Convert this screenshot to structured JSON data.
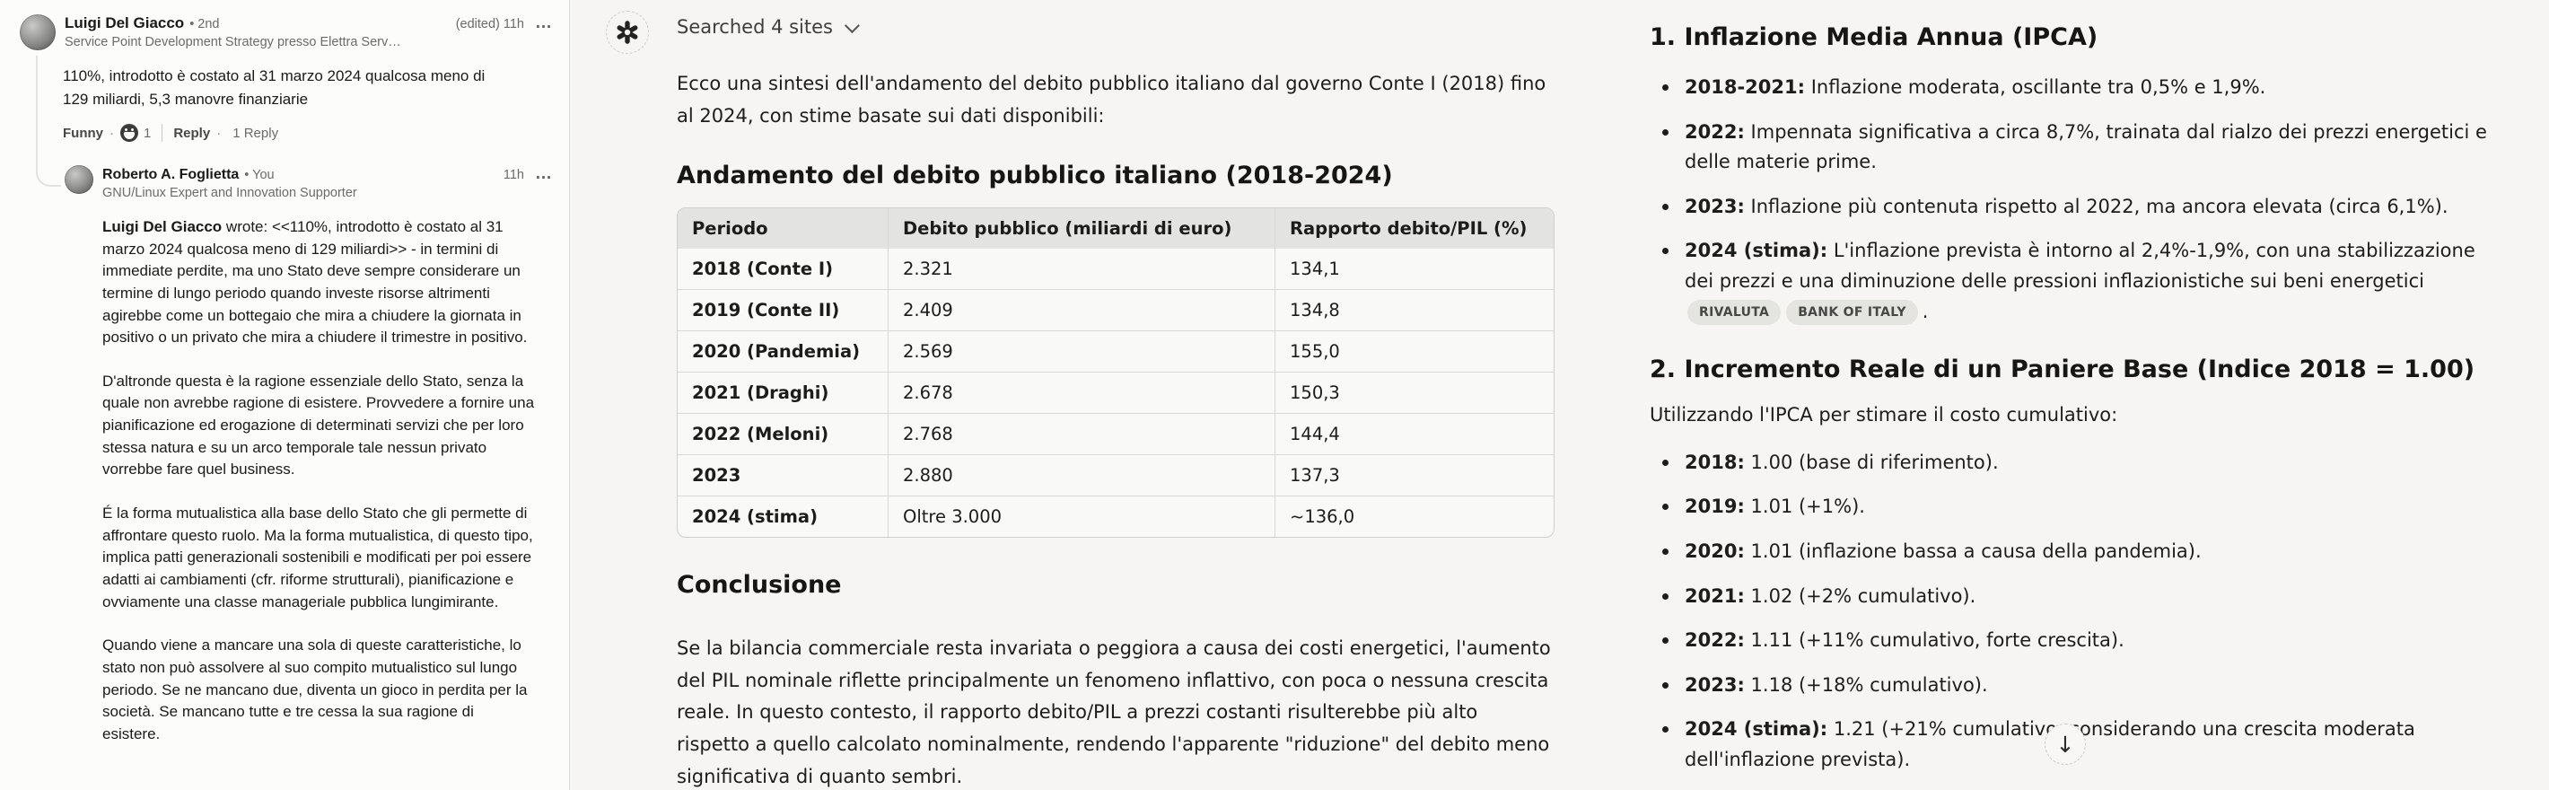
{
  "left_panel": {
    "comment1": {
      "author": "Luigi Del Giacco",
      "degree": "• 2nd",
      "meta": "(edited) 11h",
      "headline": "Service Point Development Strategy presso Elettra Serv…",
      "body": "110%, introdotto è costato al 31 marzo 2024 qualcosa meno di 129 miliardi, 5,3 manovre finanziarie",
      "reaction_label": "Funny",
      "reaction_count": "1",
      "reply_label": "Reply",
      "reply_count": "1 Reply"
    },
    "comment2": {
      "author": "Roberto A. Foglietta",
      "degree": "• You",
      "meta": "11h",
      "headline": "GNU/Linux Expert and Innovation Supporter",
      "p1_bold": "Luigi Del Giacco",
      "p1_rest": " wrote: <<110%, introdotto è costato al 31 marzo 2024 qualcosa meno di 129 miliardi>> - in termini di immediate perdite, ma uno Stato deve sempre considerare un termine di lungo periodo quando investe risorse altrimenti agirebbe come un bottegaio che mira a chiudere la giornata in positivo o un privato che mira a chiudere il trimestre in positivo.",
      "paragraphs": [
        "D'altronde questa è la ragione essenziale dello Stato, senza la quale non avrebbe ragione di esistere. Provvedere a fornire una pianificazione ed erogazione di determinati servizi che per loro stessa natura e su un arco temporale tale nessun privato vorrebbe fare quel business.",
        "É la forma mutualistica alla base dello Stato che gli permette di affrontare questo ruolo. Ma la forma mutualistica, di questo tipo, implica patti generazionali sostenibili e modificati per poi essere adatti ai cambiamenti (cfr. riforme strutturali), pianificazione e ovviamente una classe manageriale pubblica lungimirante.",
        "Quando viene a mancare una sola di queste caratteristiche, lo stato non può assolvere al suo compito mutualistico sul lungo periodo. Se ne mancano due, diventa un gioco in perdita per la società. Se mancano tutte e tre cessa la sua ragione di esistere."
      ]
    }
  },
  "chat_panel": {
    "search_status": "Searched 4 sites",
    "intro": "Ecco una sintesi dell'andamento del debito pubblico italiano dal governo Conte I (2018) fino al 2024, con stime basate sui dati disponibili:",
    "section1": {
      "heading": "Andamento del debito pubblico italiano (2018-2024)",
      "table": {
        "headers": [
          "Periodo",
          "Debito pubblico (miliardi di euro)",
          "Rapporto debito/PIL (%)"
        ],
        "rows": [
          [
            "2018 (Conte I)",
            "2.321",
            "134,1"
          ],
          [
            "2019 (Conte II)",
            "2.409",
            "134,8"
          ],
          [
            "2020 (Pandemia)",
            "2.569",
            "155,0"
          ],
          [
            "2021 (Draghi)",
            "2.678",
            "150,3"
          ],
          [
            "2022 (Meloni)",
            "2.768",
            "144,4"
          ],
          [
            "2023",
            "2.880",
            "137,3"
          ],
          [
            "2024 (stima)",
            "Oltre 3.000",
            "~136,0"
          ]
        ]
      }
    },
    "conclusion": {
      "heading": "Conclusione",
      "body": "Se la bilancia commerciale resta invariata o peggiora a causa dei costi energetici, l'aumento del PIL nominale riflette principalmente un fenomeno inflattivo, con poca o nessuna crescita reale. In questo contesto, il rapporto debito/PIL a prezzi costanti risulterebbe più alto rispetto a quello calcolato nominalmente, rendendo l'apparente \"riduzione\" del debito meno significativa di quanto sembri."
    }
  },
  "right_panel": {
    "section1": {
      "heading": "1. Inflazione Media Annua (IPCA)",
      "bullets": [
        {
          "label": "2018-2021:",
          "text": "Inflazione moderata, oscillante tra 0,5% e 1,9%."
        },
        {
          "label": "2022:",
          "text": "Impennata significativa a circa 8,7%, trainata dal rialzo dei prezzi energetici e delle materie prime."
        },
        {
          "label": "2023:",
          "text": "Inflazione più contenuta rispetto al 2022, ma ancora elevata (circa 6,1%)."
        },
        {
          "label": "2024 (stima):",
          "text": "L'inflazione prevista è intorno al 2,4%-1,9%, con una stabilizzazione dei prezzi e una diminuzione delle pressioni inflazionistiche sui beni energetici",
          "citations": [
            "RIVALUTA",
            "BANK OF ITALY"
          ],
          "suffix": "."
        }
      ]
    },
    "section2": {
      "heading": "2. Incremento Reale di un Paniere Base (Indice 2018 = 1.00)",
      "subheading": "Utilizzando l'IPCA per stimare il costo cumulativo:",
      "bullets": [
        {
          "label": "2018:",
          "text": "1.00 (base di riferimento)."
        },
        {
          "label": "2019:",
          "text": "1.01 (+1%)."
        },
        {
          "label": "2020:",
          "text": "1.01 (inflazione bassa a causa della pandemia)."
        },
        {
          "label": "2021:",
          "text": "1.02 (+2% cumulativo)."
        },
        {
          "label": "2022:",
          "text": "1.11 (+11% cumulativo, forte crescita)."
        },
        {
          "label": "2023:",
          "text": "1.18 (+18% cumulativo)."
        },
        {
          "label": "2024 (stima):",
          "text": "1.21 (+21% cumulativo, considerando una crescita moderata dell'inflazione prevista)."
        }
      ]
    },
    "scroll_button_icon": "↓"
  }
}
